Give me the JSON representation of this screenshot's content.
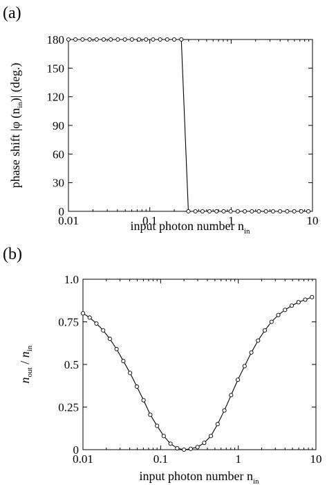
{
  "chart_data": [
    {
      "panel_label": "(a)",
      "type": "line",
      "xscale": "log",
      "xlim": [
        0.01,
        10
      ],
      "ylim": [
        0,
        180
      ],
      "xticks": [
        0.01,
        0.1,
        1,
        10
      ],
      "xtick_labels": [
        "0.01",
        "0.1",
        "1",
        "10"
      ],
      "yticks": [
        0,
        30,
        60,
        90,
        120,
        150,
        180
      ],
      "ytick_labels": [
        "0",
        "30",
        "60",
        "90",
        "120",
        "150",
        "180"
      ],
      "xlabel": "input photon number n",
      "xlabel_sub": "in",
      "ylabel": "phase shift |φ (n",
      "ylabel_sub": "in",
      "ylabel_tail": ")| (deg.)",
      "marker": "open-circle",
      "grid": false,
      "series": [
        {
          "x": [
            0.01,
            0.0122,
            0.0149,
            0.0182,
            0.0222,
            0.0271,
            0.0331,
            0.0404,
            0.0494,
            0.0603,
            0.0736,
            0.0899,
            0.1097,
            0.134,
            0.1636,
            0.1998,
            0.244,
            0.298,
            0.364,
            0.444,
            0.542,
            0.662,
            0.809,
            0.987,
            1.205,
            1.472,
            1.798,
            2.195,
            2.681,
            3.274,
            3.998,
            4.882,
            5.961,
            7.279,
            8.889
          ],
          "y": [
            180,
            180,
            180,
            180,
            180,
            180,
            180,
            180,
            180,
            180,
            180,
            180,
            180,
            180,
            180,
            180,
            180,
            0,
            0,
            0,
            0,
            0,
            0,
            0,
            0,
            0,
            0,
            0,
            0,
            0,
            0,
            0,
            0,
            0,
            0
          ]
        }
      ]
    },
    {
      "panel_label": "(b)",
      "type": "line",
      "xscale": "log",
      "xlim": [
        0.01,
        10
      ],
      "ylim": [
        0,
        1.0
      ],
      "xticks": [
        0.01,
        0.1,
        1,
        10
      ],
      "xtick_labels": [
        "0.01",
        "0.1",
        "1",
        "10"
      ],
      "yticks": [
        0,
        0.25,
        0.5,
        0.75,
        1.0
      ],
      "ytick_labels": [
        "0",
        "0.25",
        "0.5",
        "0.75",
        "1.0"
      ],
      "xlabel": "input photon number n",
      "xlabel_sub": "in",
      "ylabel_num": "n",
      "ylabel_num_sub": "out",
      "ylabel_sep": " / ",
      "ylabel_den": "n",
      "ylabel_den_sub": "in",
      "marker": "open-circle",
      "grid": false,
      "series": [
        {
          "x": [
            0.01,
            0.0122,
            0.0149,
            0.0182,
            0.0222,
            0.0271,
            0.0331,
            0.0404,
            0.0494,
            0.0603,
            0.0736,
            0.0899,
            0.1097,
            0.134,
            0.1636,
            0.1998,
            0.244,
            0.298,
            0.364,
            0.444,
            0.542,
            0.662,
            0.809,
            0.987,
            1.205,
            1.472,
            1.798,
            2.195,
            2.681,
            3.274,
            3.998,
            4.882,
            5.961,
            7.279,
            8.889
          ],
          "y": [
            0.8,
            0.775,
            0.74,
            0.7,
            0.65,
            0.59,
            0.52,
            0.45,
            0.37,
            0.29,
            0.205,
            0.14,
            0.08,
            0.035,
            0.008,
            0.0,
            0.005,
            0.015,
            0.04,
            0.08,
            0.15,
            0.23,
            0.32,
            0.41,
            0.49,
            0.57,
            0.64,
            0.7,
            0.75,
            0.79,
            0.82,
            0.845,
            0.865,
            0.88,
            0.895
          ]
        }
      ]
    }
  ]
}
